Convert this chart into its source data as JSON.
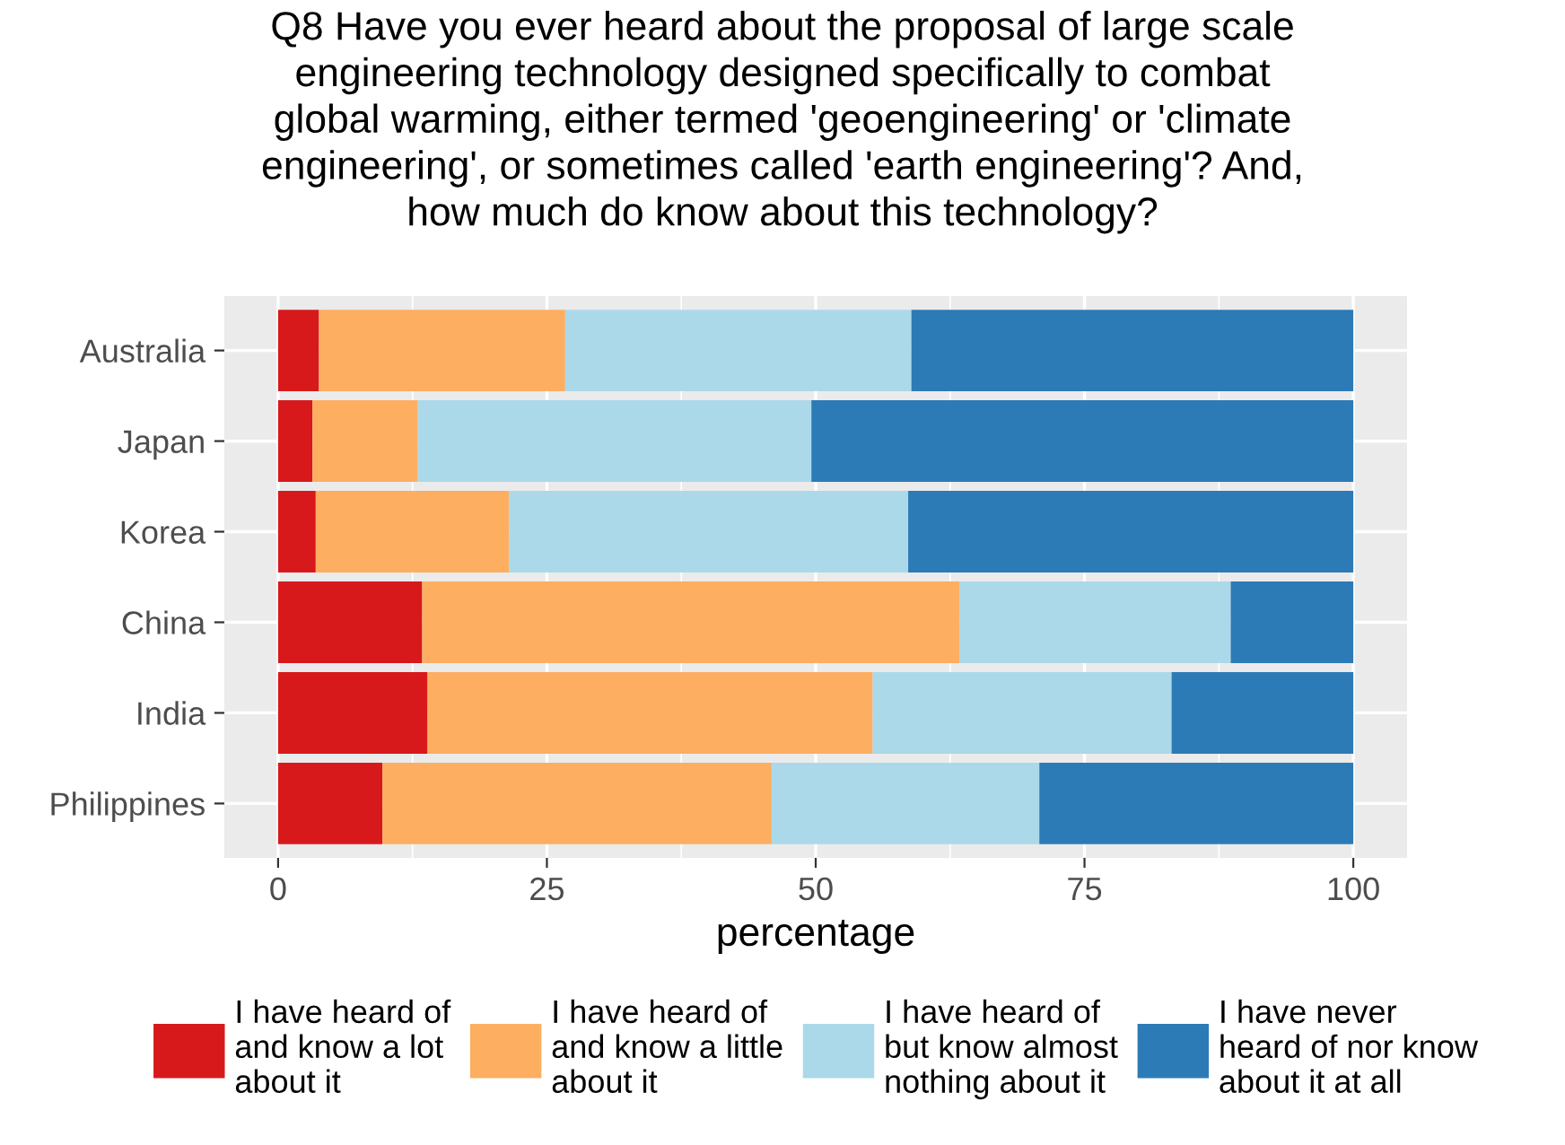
{
  "chart_data": {
    "type": "bar",
    "orientation": "horizontal",
    "stacked": true,
    "title": "Q8 Have you ever heard about the proposal of large scale\nengineering technology designed specifically to combat\nglobal warming, either termed 'geoengineering' or 'climate\nengineering', or sometimes called 'earth engineering'? And,\nhow much do know about this technology?",
    "xlabel": "percentage",
    "categories": [
      "Australia",
      "Japan",
      "Korea",
      "China",
      "India",
      "Philippines"
    ],
    "series": [
      {
        "name": "I have heard of\nand know a lot\nabout it",
        "color": "#d7191c",
        "values": [
          3.8,
          3.2,
          3.5,
          13.4,
          13.9,
          9.7
        ]
      },
      {
        "name": "I have heard of\nand know a little\nabout it",
        "color": "#fdae61",
        "values": [
          22.9,
          9.8,
          18.0,
          50.0,
          41.4,
          36.2
        ]
      },
      {
        "name": "I have heard of\nbut know almost\nnothing about it",
        "color": "#abd9e9",
        "values": [
          32.2,
          36.6,
          37.1,
          25.2,
          27.8,
          24.9
        ]
      },
      {
        "name": "I have never\nheard of nor know\nabout it at all",
        "color": "#2c7bb6",
        "values": [
          41.1,
          50.4,
          41.4,
          11.4,
          16.9,
          29.2
        ]
      }
    ],
    "xlim": [
      -5,
      105
    ],
    "xticks": [
      0,
      25,
      50,
      75,
      100
    ],
    "grid": true,
    "legend": "bottom"
  }
}
